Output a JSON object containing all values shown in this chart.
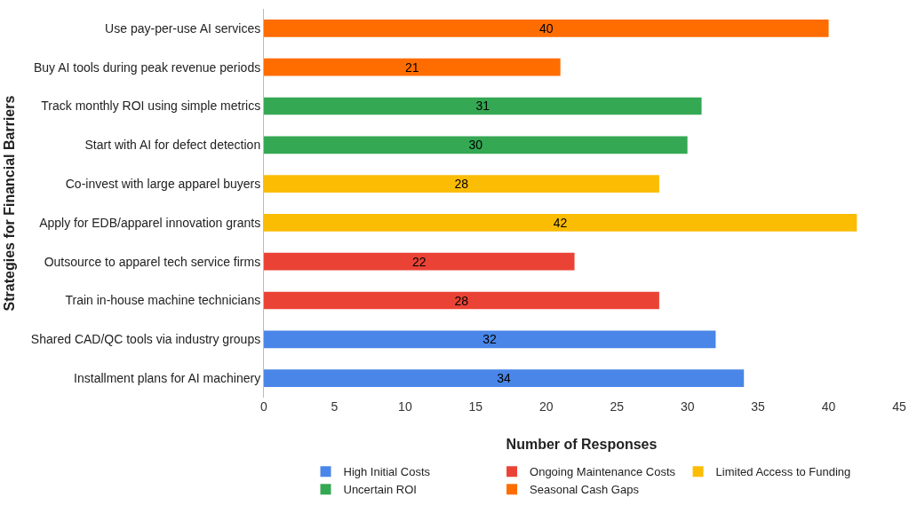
{
  "chart_data": {
    "type": "bar",
    "orientation": "horizontal",
    "xlabel": "Number of Responses",
    "ylabel": "Strategies for Financial Barriers",
    "categories": [
      "Use pay-per-use AI services",
      "Buy AI tools during peak revenue periods",
      "Track monthly ROI using simple metrics",
      "Start with AI for defect detection",
      "Co-invest with large apparel buyers",
      "Apply for EDB/apparel innovation grants",
      "Outsource to apparel tech service firms",
      "Train in-house machine technicians",
      "Shared CAD/QC tools via industry groups",
      "Installment plans for AI machinery"
    ],
    "series": [
      {
        "name": "High Initial Costs",
        "color": "#4a86e8",
        "values": [
          null,
          null,
          null,
          null,
          null,
          null,
          null,
          null,
          32,
          34
        ]
      },
      {
        "name": "Ongoing Maintenance Costs",
        "color": "#ea4335",
        "values": [
          null,
          null,
          null,
          null,
          null,
          null,
          22,
          28,
          null,
          null
        ]
      },
      {
        "name": "Limited Access to Funding",
        "color": "#fbbc04",
        "values": [
          null,
          null,
          null,
          null,
          28,
          42,
          null,
          null,
          null,
          null
        ]
      },
      {
        "name": "Uncertain ROI",
        "color": "#34a853",
        "values": [
          null,
          null,
          31,
          30,
          null,
          null,
          null,
          null,
          null,
          null
        ]
      },
      {
        "name": "Seasonal Cash Gaps",
        "color": "#ff6d01",
        "values": [
          40,
          21,
          null,
          null,
          null,
          null,
          null,
          null,
          null,
          null
        ]
      }
    ],
    "xlim": [
      0,
      45
    ],
    "xticks": [
      0,
      5,
      10,
      15,
      20,
      25,
      30,
      35,
      40,
      45
    ],
    "grid": false,
    "legend": "bottom",
    "data_labels": true
  }
}
